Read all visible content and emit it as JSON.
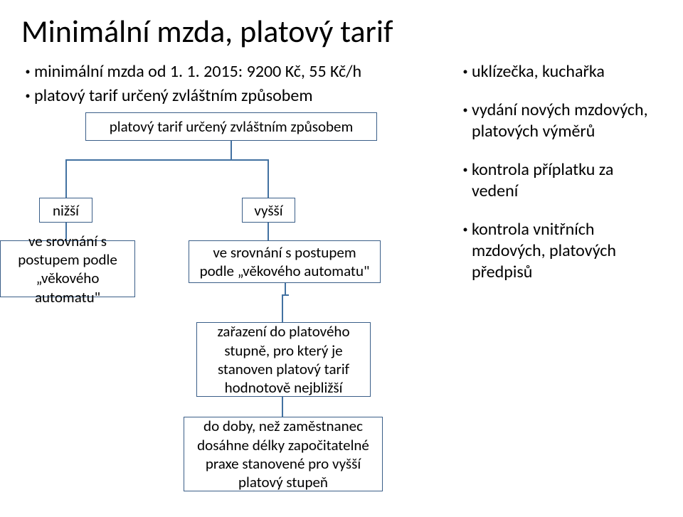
{
  "title": "Minimální mzda, platový tarif",
  "left_bullets": [
    "minimální mzda od 1. 1. 2015: 9200 Kč, 55 Kč/h",
    "platový tarif určený zvláštním způsobem"
  ],
  "right_bullets": [
    "uklízečka, kuchařka",
    "vydání nových mzdových, platových výměrů",
    "kontrola příplatku za vedení",
    "kontrola vnitřních mzdových, platových předpisů"
  ],
  "chart": {
    "top": "platový tarif určený zvláštním způsobem",
    "nizsi": "nižší",
    "vyssi": "vyšší",
    "leaf_left": "ve srovnání s postupem podle „věkového automatu\"",
    "leaf_right": "ve srovnání s postupem podle „věkového automatu\"",
    "mid": "zařazení do platového stupně, pro který je stanoven platový tarif hodnotově nejbližší",
    "bot": "do doby, než zaměstnanec dosáhne délky započitatelné praxe stanovené pro vyšší platový stupeň"
  },
  "colors": {
    "border": "#3a5e88",
    "connector": "#4271a1",
    "background": "#ffffff",
    "text": "#000000"
  }
}
